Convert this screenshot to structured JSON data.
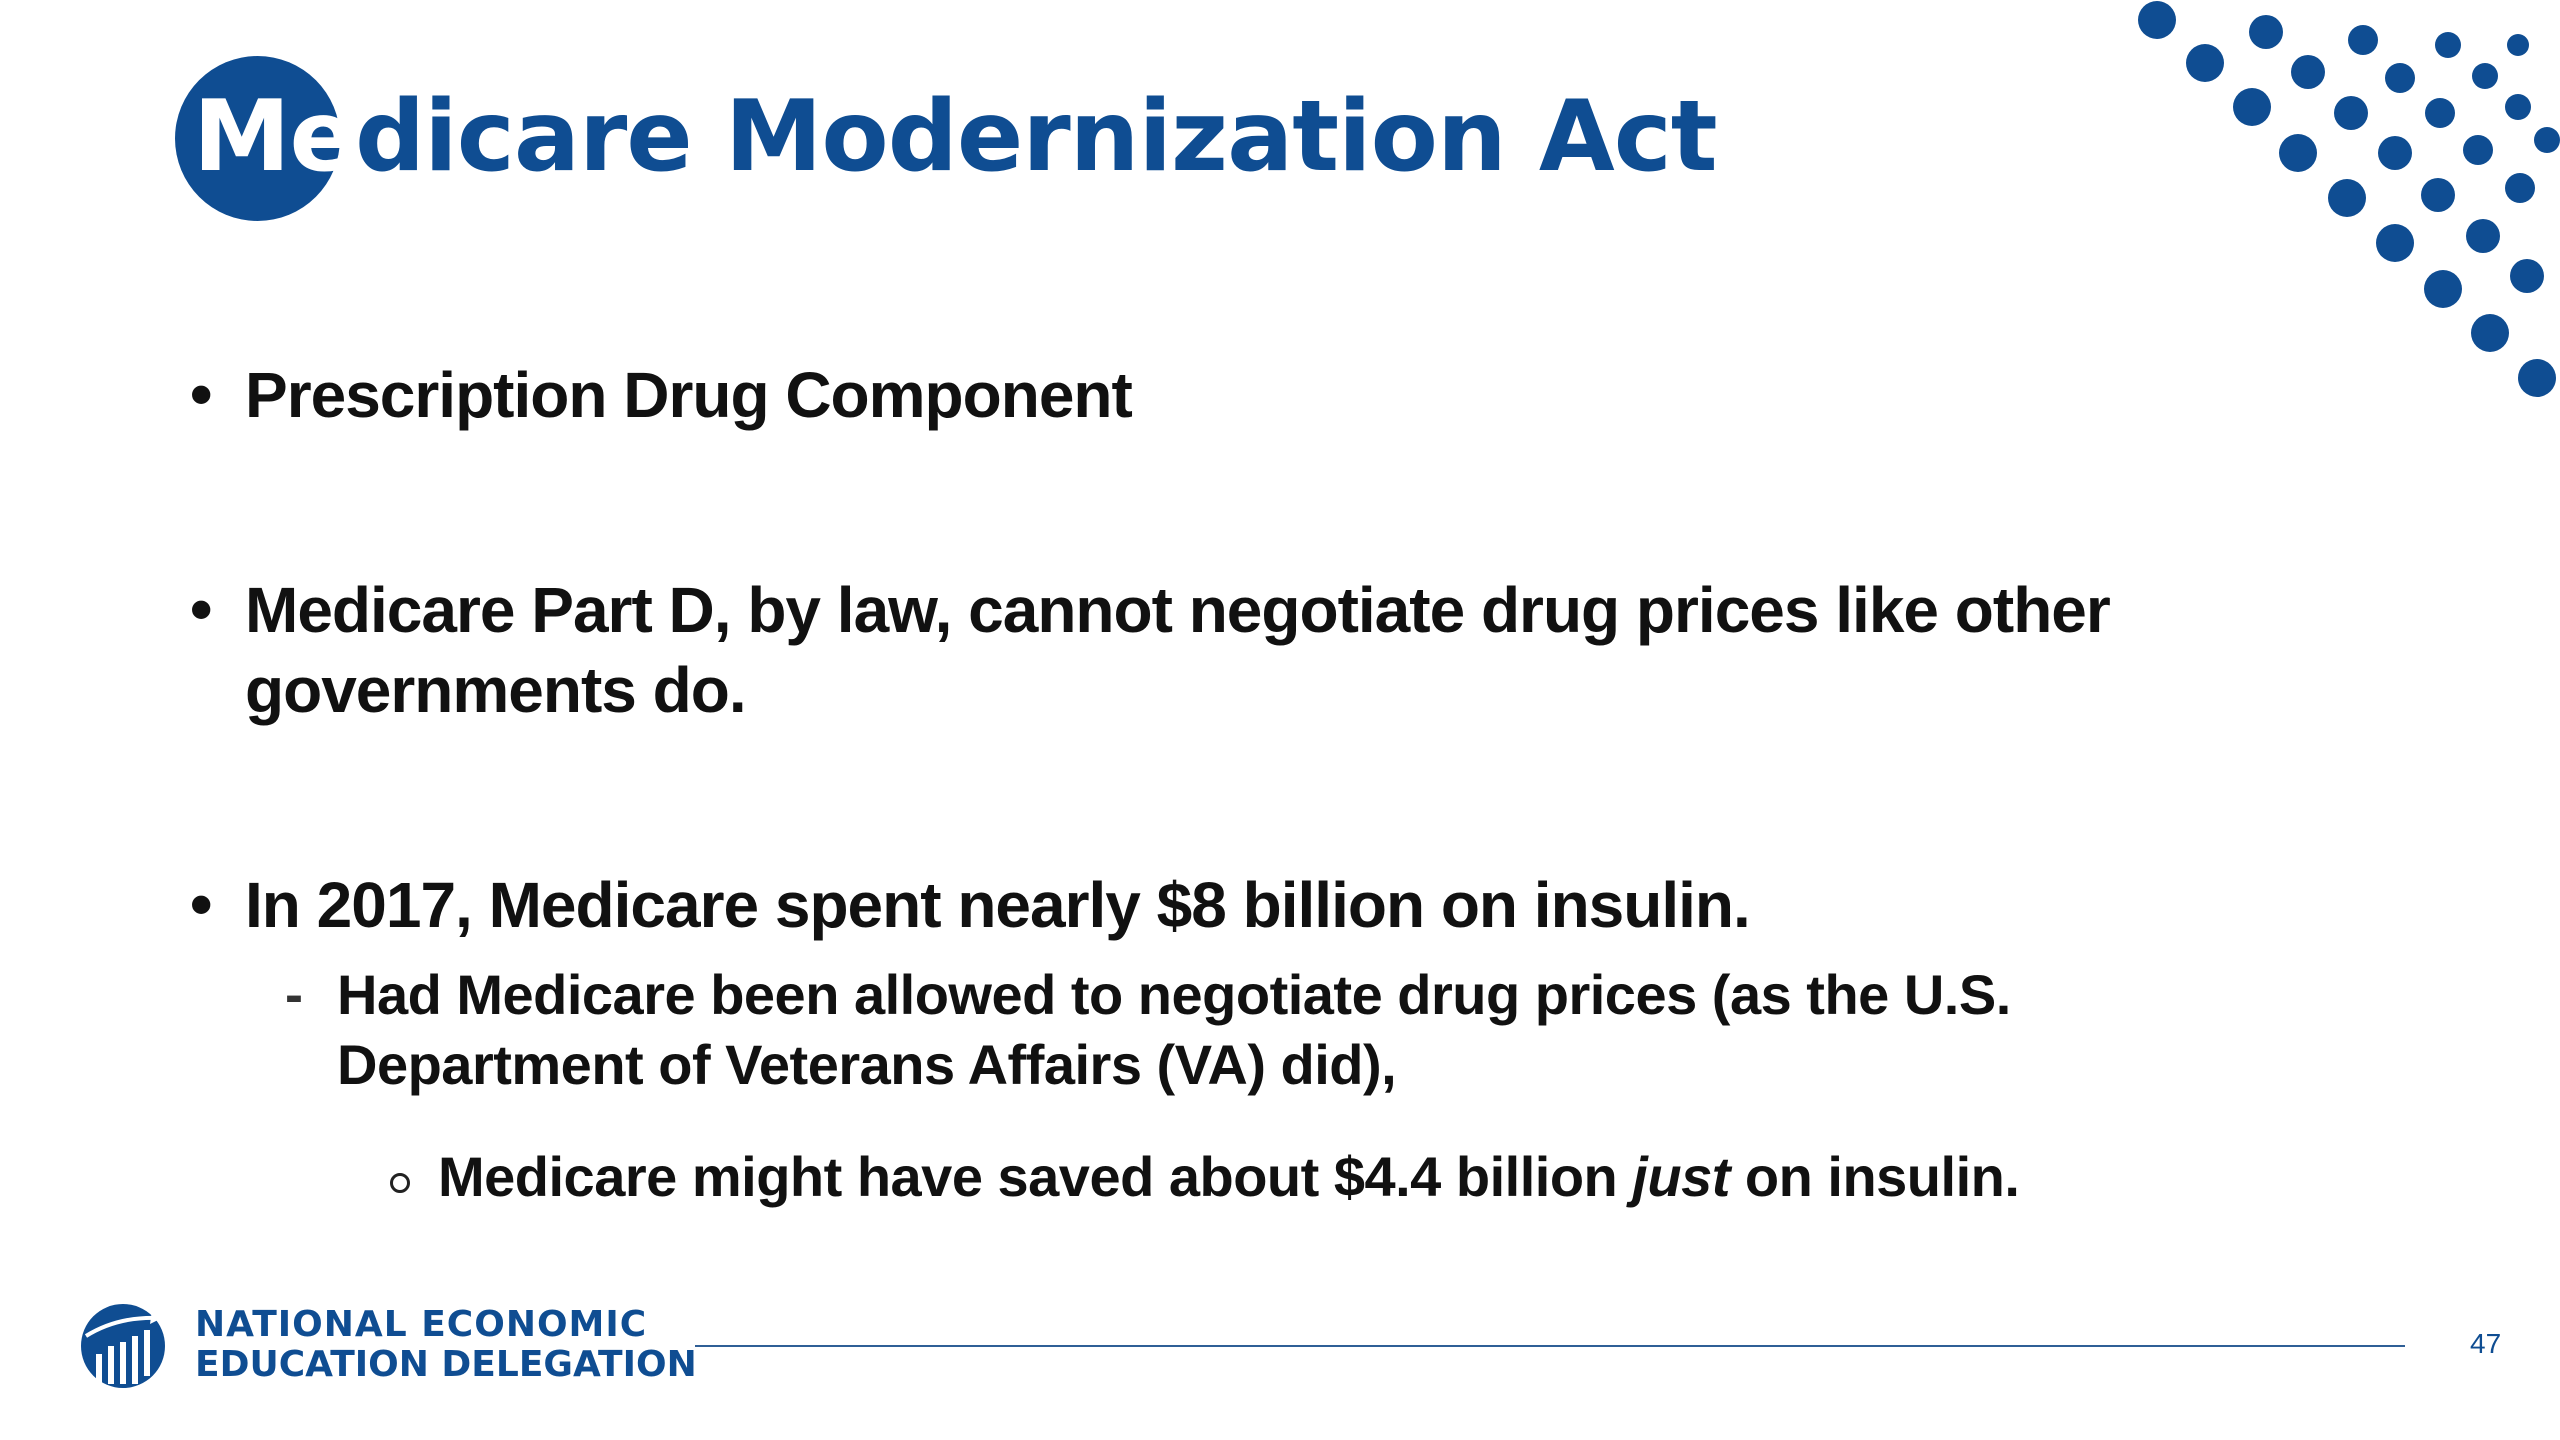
{
  "slide": {
    "title_head": "Me",
    "title_tail": "dicare Modernization Act",
    "bullets": {
      "b1": "Prescription Drug Component",
      "b2_part1": "Medicare Part D, by law, cannot negotiate drug prices like other",
      "b2_part2": "governments do.",
      "b3": "In 2017, Medicare spent nearly $8 billion on insulin.",
      "sub1_line1": "Had Medicare been allowed to negotiate drug prices (as the U.S.",
      "sub1_line2": "Department of Veterans Affairs (VA) did),",
      "subsub_before": "Medicare might have saved about $4.4 billion ",
      "subsub_emphasis": "just",
      "subsub_after": " on insulin."
    },
    "bullet_mark": "•",
    "sub_mark": "-",
    "footer": {
      "logo_line1": "NATIONAL ECONOMIC",
      "logo_line2": "EDUCATION DELEGATION",
      "page_number": "47"
    },
    "colors": {
      "brand_blue": "#0f4d92",
      "text": "#111111"
    },
    "icons": {
      "logo": "globe-chart-icon",
      "decoration": "dot-pattern"
    }
  }
}
